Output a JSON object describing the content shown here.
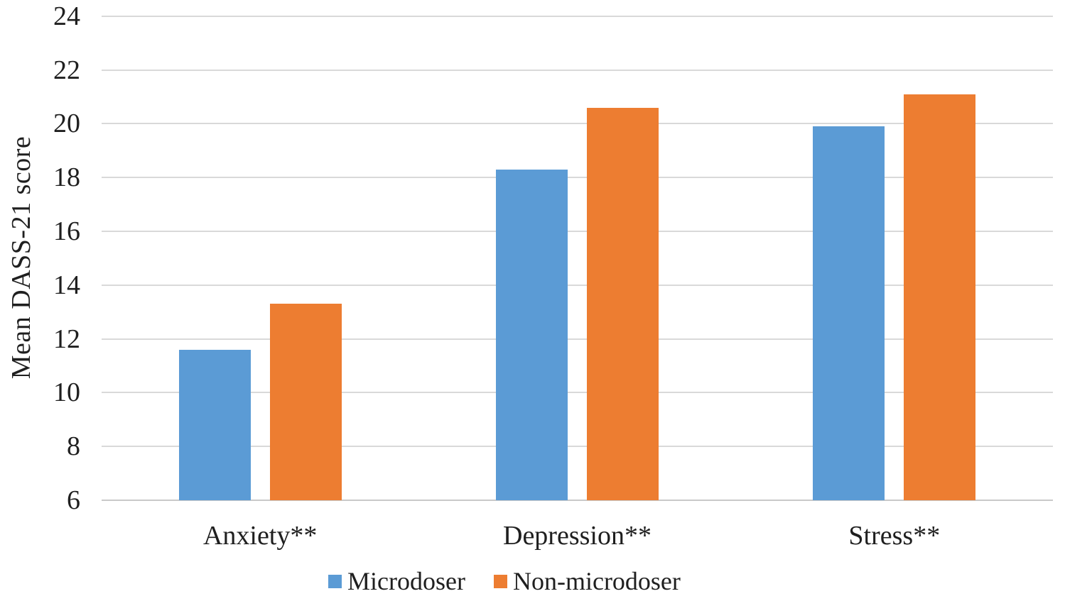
{
  "chart_data": {
    "type": "bar",
    "title": "",
    "ylabel": "Mean DASS-21 score",
    "xlabel": "",
    "categories": [
      "Anxiety**",
      "Depression**",
      "Stress**"
    ],
    "series": [
      {
        "name": "Microdoser",
        "color": "#5B9BD5",
        "values": [
          11.6,
          18.3,
          19.9
        ]
      },
      {
        "name": "Non-microdoser",
        "color": "#ED7D31",
        "values": [
          13.3,
          20.6,
          21.1
        ]
      }
    ],
    "ylim": [
      6,
      24
    ],
    "yticks": [
      24,
      22,
      20,
      18,
      16,
      14,
      12,
      10,
      8,
      6
    ],
    "ytick_step": 2,
    "grid": true,
    "legend": {
      "position": "bottom",
      "entries": [
        "Microdoser",
        "Non-microdoser"
      ]
    },
    "colors": {
      "gridline": "#D9D9D9",
      "axis_line": "#C9C9C9",
      "text": "#1F1F1F",
      "background": "#FFFFFF"
    }
  }
}
